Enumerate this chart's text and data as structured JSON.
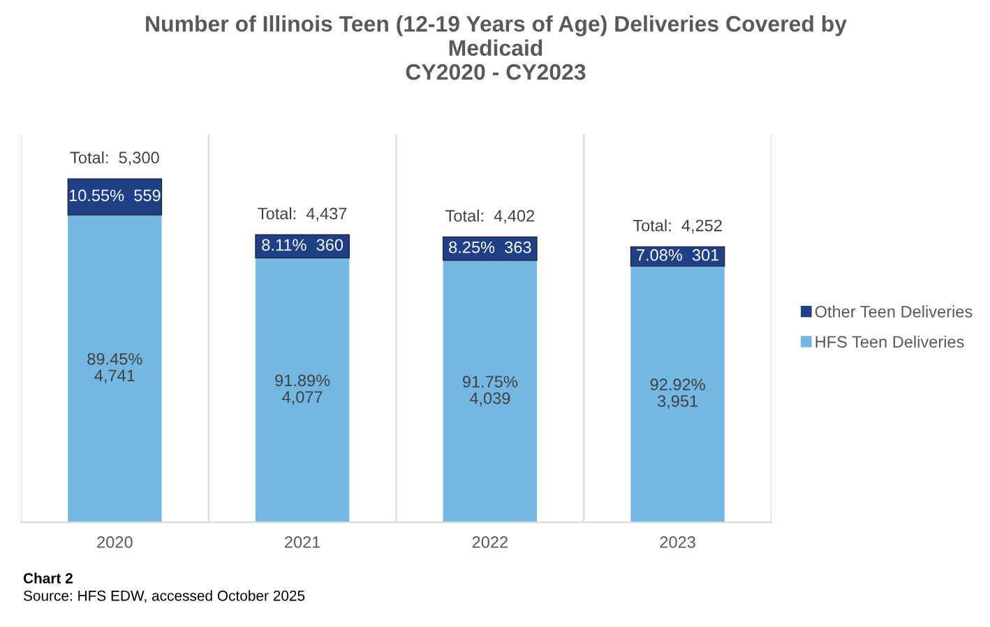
{
  "chart_data": {
    "type": "bar",
    "title": "Number of Illinois Teen (12-19 Years of Age) Deliveries Covered by\nMedicaid\nCY2020 - CY2023",
    "categories": [
      "2020",
      "2021",
      "2022",
      "2023"
    ],
    "stacked": true,
    "series": [
      {
        "name": "HFS Teen Deliveries",
        "color": "#74b7e2",
        "values": [
          4741,
          4077,
          4039,
          3951
        ],
        "value_labels": [
          "89.45%\n4,741",
          "91.89%\n4,077",
          "91.75%\n4,039",
          "92.92%\n3,951"
        ]
      },
      {
        "name": "Other Teen Deliveries",
        "color": "#1f3f87",
        "values": [
          559,
          360,
          363,
          301
        ],
        "value_labels": [
          "10.55%  559",
          "8.11%  360",
          "8.25%  363",
          "7.08%  301"
        ]
      }
    ],
    "totals": [
      "Total:  5,300",
      "Total:  4,437",
      "Total:  4,402",
      "Total:  4,252"
    ],
    "grid": "x",
    "legend": "right",
    "tick_labels": "x",
    "annotations": [
      "Chart 2",
      "Source: HFS EDW, accessed October 2025"
    ]
  }
}
